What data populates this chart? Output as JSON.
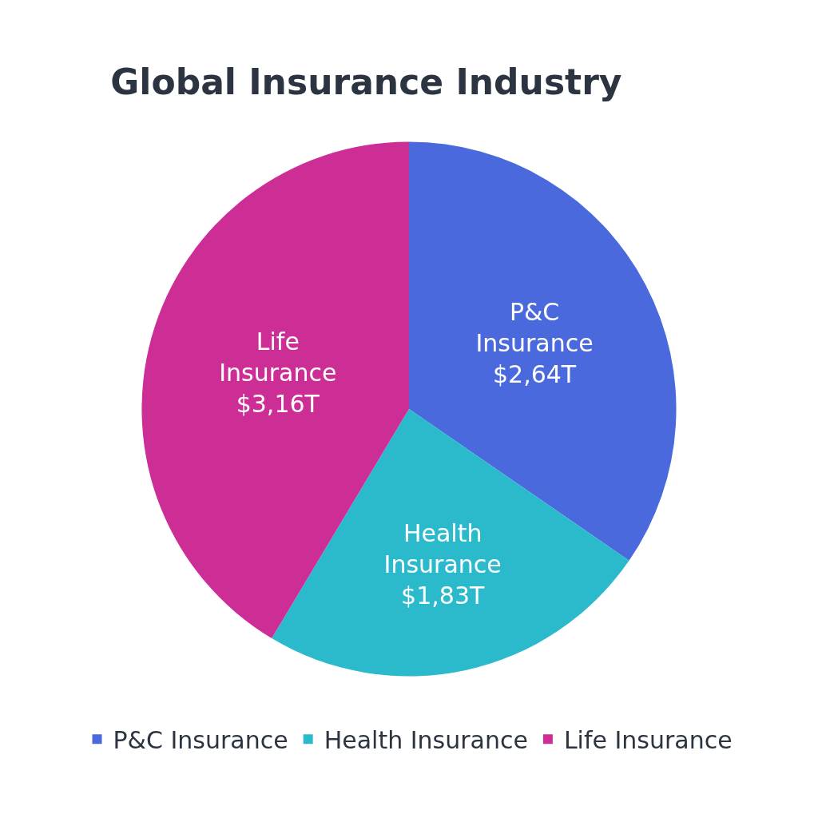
{
  "chart_data": {
    "type": "pie",
    "title": "Global Insurance Industry",
    "categories": [
      "P&C Insurance",
      "Health Insurance",
      "Life Insurance"
    ],
    "values": [
      2.64,
      1.83,
      3.16
    ],
    "value_labels": [
      "$2,64T",
      "$1,83T",
      "$3,16T"
    ],
    "colors": [
      "#4a69dd",
      "#2bbacc",
      "#cc2e96"
    ],
    "legend": "bottom"
  }
}
